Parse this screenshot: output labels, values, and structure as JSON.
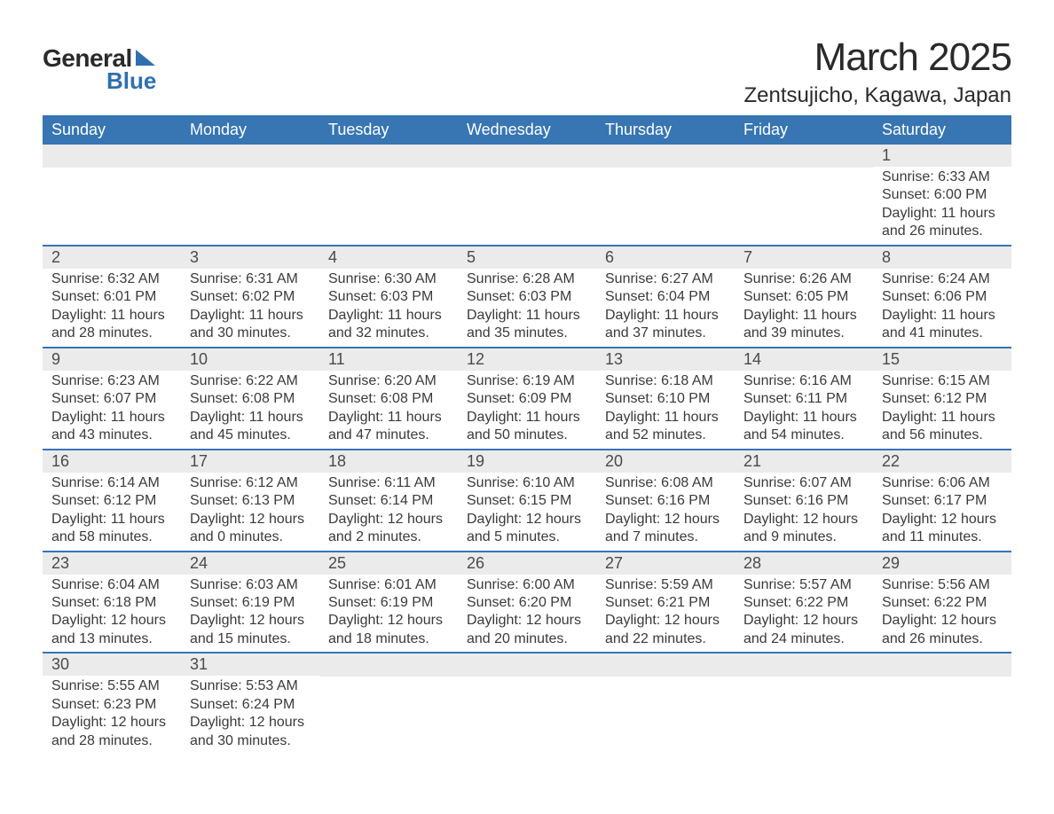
{
  "logo": {
    "word1": "General",
    "word2": "Blue"
  },
  "title": "March 2025",
  "location": "Zentsujicho, Kagawa, Japan",
  "colors": {
    "header_bg": "#3775b3",
    "header_text": "#ffffff",
    "date_bar_bg": "#ebebeb",
    "row_border": "#3775b3",
    "body_text": "#3a3a3a",
    "logo_accent": "#2f6fb0"
  },
  "fonts": {
    "title_size_pt": 34,
    "location_size_pt": 18,
    "header_size_pt": 14,
    "body_size_pt": 12
  },
  "day_headers": [
    "Sunday",
    "Monday",
    "Tuesday",
    "Wednesday",
    "Thursday",
    "Friday",
    "Saturday"
  ],
  "weeks": [
    [
      {
        "date": "",
        "sunrise": "",
        "sunset": "",
        "daylight": ""
      },
      {
        "date": "",
        "sunrise": "",
        "sunset": "",
        "daylight": ""
      },
      {
        "date": "",
        "sunrise": "",
        "sunset": "",
        "daylight": ""
      },
      {
        "date": "",
        "sunrise": "",
        "sunset": "",
        "daylight": ""
      },
      {
        "date": "",
        "sunrise": "",
        "sunset": "",
        "daylight": ""
      },
      {
        "date": "",
        "sunrise": "",
        "sunset": "",
        "daylight": ""
      },
      {
        "date": "1",
        "sunrise": "Sunrise: 6:33 AM",
        "sunset": "Sunset: 6:00 PM",
        "daylight": "Daylight: 11 hours and 26 minutes."
      }
    ],
    [
      {
        "date": "2",
        "sunrise": "Sunrise: 6:32 AM",
        "sunset": "Sunset: 6:01 PM",
        "daylight": "Daylight: 11 hours and 28 minutes."
      },
      {
        "date": "3",
        "sunrise": "Sunrise: 6:31 AM",
        "sunset": "Sunset: 6:02 PM",
        "daylight": "Daylight: 11 hours and 30 minutes."
      },
      {
        "date": "4",
        "sunrise": "Sunrise: 6:30 AM",
        "sunset": "Sunset: 6:03 PM",
        "daylight": "Daylight: 11 hours and 32 minutes."
      },
      {
        "date": "5",
        "sunrise": "Sunrise: 6:28 AM",
        "sunset": "Sunset: 6:03 PM",
        "daylight": "Daylight: 11 hours and 35 minutes."
      },
      {
        "date": "6",
        "sunrise": "Sunrise: 6:27 AM",
        "sunset": "Sunset: 6:04 PM",
        "daylight": "Daylight: 11 hours and 37 minutes."
      },
      {
        "date": "7",
        "sunrise": "Sunrise: 6:26 AM",
        "sunset": "Sunset: 6:05 PM",
        "daylight": "Daylight: 11 hours and 39 minutes."
      },
      {
        "date": "8",
        "sunrise": "Sunrise: 6:24 AM",
        "sunset": "Sunset: 6:06 PM",
        "daylight": "Daylight: 11 hours and 41 minutes."
      }
    ],
    [
      {
        "date": "9",
        "sunrise": "Sunrise: 6:23 AM",
        "sunset": "Sunset: 6:07 PM",
        "daylight": "Daylight: 11 hours and 43 minutes."
      },
      {
        "date": "10",
        "sunrise": "Sunrise: 6:22 AM",
        "sunset": "Sunset: 6:08 PM",
        "daylight": "Daylight: 11 hours and 45 minutes."
      },
      {
        "date": "11",
        "sunrise": "Sunrise: 6:20 AM",
        "sunset": "Sunset: 6:08 PM",
        "daylight": "Daylight: 11 hours and 47 minutes."
      },
      {
        "date": "12",
        "sunrise": "Sunrise: 6:19 AM",
        "sunset": "Sunset: 6:09 PM",
        "daylight": "Daylight: 11 hours and 50 minutes."
      },
      {
        "date": "13",
        "sunrise": "Sunrise: 6:18 AM",
        "sunset": "Sunset: 6:10 PM",
        "daylight": "Daylight: 11 hours and 52 minutes."
      },
      {
        "date": "14",
        "sunrise": "Sunrise: 6:16 AM",
        "sunset": "Sunset: 6:11 PM",
        "daylight": "Daylight: 11 hours and 54 minutes."
      },
      {
        "date": "15",
        "sunrise": "Sunrise: 6:15 AM",
        "sunset": "Sunset: 6:12 PM",
        "daylight": "Daylight: 11 hours and 56 minutes."
      }
    ],
    [
      {
        "date": "16",
        "sunrise": "Sunrise: 6:14 AM",
        "sunset": "Sunset: 6:12 PM",
        "daylight": "Daylight: 11 hours and 58 minutes."
      },
      {
        "date": "17",
        "sunrise": "Sunrise: 6:12 AM",
        "sunset": "Sunset: 6:13 PM",
        "daylight": "Daylight: 12 hours and 0 minutes."
      },
      {
        "date": "18",
        "sunrise": "Sunrise: 6:11 AM",
        "sunset": "Sunset: 6:14 PM",
        "daylight": "Daylight: 12 hours and 2 minutes."
      },
      {
        "date": "19",
        "sunrise": "Sunrise: 6:10 AM",
        "sunset": "Sunset: 6:15 PM",
        "daylight": "Daylight: 12 hours and 5 minutes."
      },
      {
        "date": "20",
        "sunrise": "Sunrise: 6:08 AM",
        "sunset": "Sunset: 6:16 PM",
        "daylight": "Daylight: 12 hours and 7 minutes."
      },
      {
        "date": "21",
        "sunrise": "Sunrise: 6:07 AM",
        "sunset": "Sunset: 6:16 PM",
        "daylight": "Daylight: 12 hours and 9 minutes."
      },
      {
        "date": "22",
        "sunrise": "Sunrise: 6:06 AM",
        "sunset": "Sunset: 6:17 PM",
        "daylight": "Daylight: 12 hours and 11 minutes."
      }
    ],
    [
      {
        "date": "23",
        "sunrise": "Sunrise: 6:04 AM",
        "sunset": "Sunset: 6:18 PM",
        "daylight": "Daylight: 12 hours and 13 minutes."
      },
      {
        "date": "24",
        "sunrise": "Sunrise: 6:03 AM",
        "sunset": "Sunset: 6:19 PM",
        "daylight": "Daylight: 12 hours and 15 minutes."
      },
      {
        "date": "25",
        "sunrise": "Sunrise: 6:01 AM",
        "sunset": "Sunset: 6:19 PM",
        "daylight": "Daylight: 12 hours and 18 minutes."
      },
      {
        "date": "26",
        "sunrise": "Sunrise: 6:00 AM",
        "sunset": "Sunset: 6:20 PM",
        "daylight": "Daylight: 12 hours and 20 minutes."
      },
      {
        "date": "27",
        "sunrise": "Sunrise: 5:59 AM",
        "sunset": "Sunset: 6:21 PM",
        "daylight": "Daylight: 12 hours and 22 minutes."
      },
      {
        "date": "28",
        "sunrise": "Sunrise: 5:57 AM",
        "sunset": "Sunset: 6:22 PM",
        "daylight": "Daylight: 12 hours and 24 minutes."
      },
      {
        "date": "29",
        "sunrise": "Sunrise: 5:56 AM",
        "sunset": "Sunset: 6:22 PM",
        "daylight": "Daylight: 12 hours and 26 minutes."
      }
    ],
    [
      {
        "date": "30",
        "sunrise": "Sunrise: 5:55 AM",
        "sunset": "Sunset: 6:23 PM",
        "daylight": "Daylight: 12 hours and 28 minutes."
      },
      {
        "date": "31",
        "sunrise": "Sunrise: 5:53 AM",
        "sunset": "Sunset: 6:24 PM",
        "daylight": "Daylight: 12 hours and 30 minutes."
      },
      {
        "date": "",
        "sunrise": "",
        "sunset": "",
        "daylight": ""
      },
      {
        "date": "",
        "sunrise": "",
        "sunset": "",
        "daylight": ""
      },
      {
        "date": "",
        "sunrise": "",
        "sunset": "",
        "daylight": ""
      },
      {
        "date": "",
        "sunrise": "",
        "sunset": "",
        "daylight": ""
      },
      {
        "date": "",
        "sunrise": "",
        "sunset": "",
        "daylight": ""
      }
    ]
  ]
}
